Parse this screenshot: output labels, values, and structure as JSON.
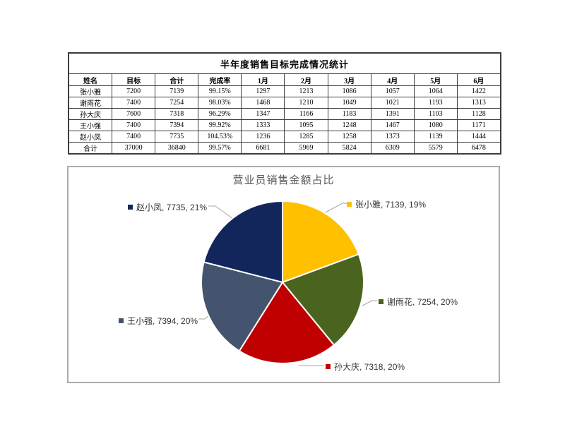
{
  "table": {
    "title": "半年度销售目标完成情况统计",
    "columns": [
      "姓名",
      "目标",
      "合计",
      "完成率",
      "1月",
      "2月",
      "3月",
      "4月",
      "5月",
      "6月"
    ],
    "rows": [
      [
        "张小雅",
        "7200",
        "7139",
        "99.15%",
        "1297",
        "1213",
        "1086",
        "1057",
        "1064",
        "1422"
      ],
      [
        "谢雨花",
        "7400",
        "7254",
        "98.03%",
        "1468",
        "1210",
        "1049",
        "1021",
        "1193",
        "1313"
      ],
      [
        "孙大庆",
        "7600",
        "7318",
        "96.29%",
        "1347",
        "1166",
        "1183",
        "1391",
        "1103",
        "1128"
      ],
      [
        "王小强",
        "7400",
        "7394",
        "99.92%",
        "1333",
        "1095",
        "1248",
        "1467",
        "1080",
        "1171"
      ],
      [
        "赵小凤",
        "7400",
        "7735",
        "104.53%",
        "1236",
        "1285",
        "1258",
        "1373",
        "1139",
        "1444"
      ],
      [
        "合计",
        "37000",
        "36840",
        "99.57%",
        "6681",
        "5969",
        "5824",
        "6309",
        "5579",
        "6478"
      ]
    ]
  },
  "chart_data": {
    "type": "pie",
    "title": "营业员销售金额占比",
    "categories": [
      "张小雅",
      "谢雨花",
      "孙大庆",
      "王小强",
      "赵小凤"
    ],
    "values": [
      7139,
      7254,
      7318,
      7394,
      7735
    ],
    "percents": [
      "19%",
      "20%",
      "20%",
      "20%",
      "21%"
    ],
    "colors": [
      "#FFC000",
      "#4A641F",
      "#C00000",
      "#44546F",
      "#13265C"
    ],
    "callout_labels": [
      "张小雅, 7139, 19%",
      "谢雨花, 7254, 20%",
      "孙大庆, 7318, 20%",
      "王小强, 7394, 20%",
      "赵小凤, 7735, 21%"
    ],
    "start_angle_deg": 0,
    "direction": "clockwise",
    "legend_position": "callouts",
    "title_color": "#595959",
    "leader_line_color": "#A6A6A6",
    "slice_separator_color": "#FFFFFF"
  }
}
